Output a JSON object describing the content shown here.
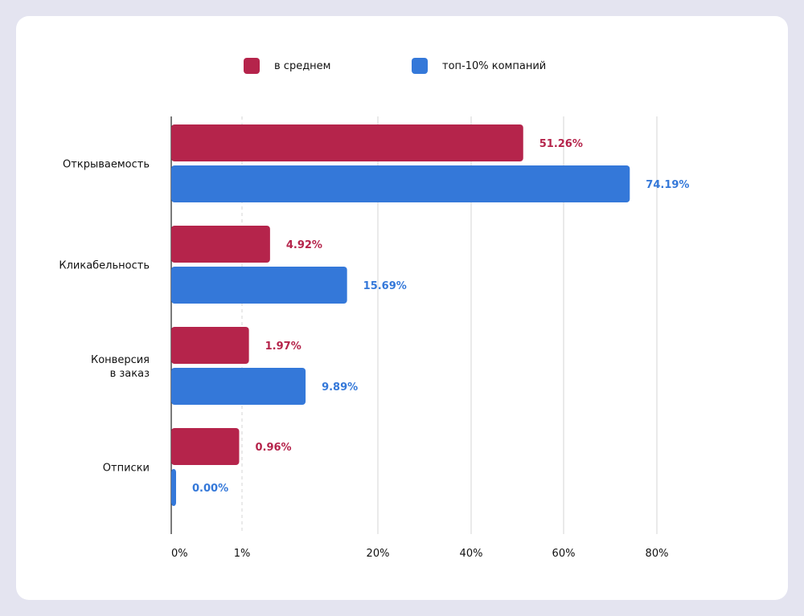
{
  "chart_data": {
    "type": "bar",
    "orientation": "horizontal",
    "categories": [
      "Открываемость",
      "Кликабельность",
      "Конверсия\nв заказ",
      "Отписки"
    ],
    "series": [
      {
        "name": "в среднем",
        "color": "#b5244b",
        "values": [
          51.26,
          4.92,
          1.97,
          0.96
        ],
        "labels": [
          "51.26%",
          "4.92%",
          "1.97%",
          "0.96%"
        ]
      },
      {
        "name": "топ-10% компаний",
        "color": "#3478d9",
        "values": [
          74.19,
          15.69,
          9.89,
          0.0
        ],
        "labels": [
          "74.19%",
          "15.69%",
          "9.89%",
          "0.00%"
        ]
      }
    ],
    "x_ticks": [
      0,
      1,
      20,
      40,
      60,
      80
    ],
    "x_tick_labels": [
      "0%",
      "1%",
      "20%",
      "40%",
      "60%",
      "80%"
    ],
    "x_scale": "piecewise-linear (0–1% expanded)",
    "grid": true,
    "legend_position": "top-center",
    "title": "",
    "xlabel": "",
    "ylabel": ""
  }
}
